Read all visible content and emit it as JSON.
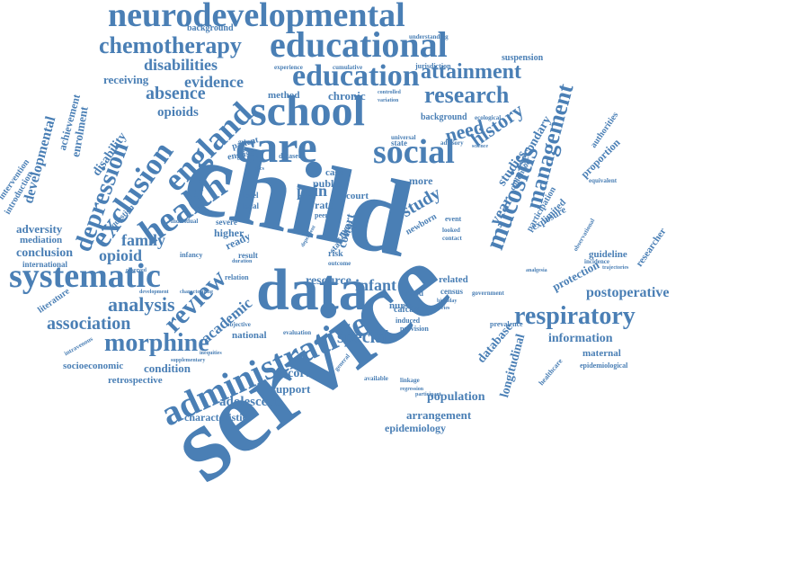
{
  "cloud": {
    "color": "#4a7fb5",
    "words": [
      "neurodevelopmental",
      "educational",
      "chemotherapy",
      "education",
      "disabilities",
      "attainment",
      "evidence",
      "absence",
      "research",
      "receiving",
      "england",
      "school",
      "management",
      "service",
      "care",
      "social",
      "need",
      "mucositis",
      "history",
      "opioids",
      "background",
      "understanding",
      "suspension",
      "experience",
      "cumulative",
      "jurisdiction",
      "ecological",
      "secondary",
      "authorities",
      "proportion",
      "exclusion",
      "depression",
      "developmental",
      "achievement",
      "enrolment",
      "disability",
      "health",
      "study",
      "year",
      "studies",
      "family",
      "pain",
      "systematic",
      "review",
      "opioid",
      "analysis",
      "association",
      "conclusion",
      "adversity",
      "mediation",
      "international",
      "child",
      "data",
      "administrative",
      "morphine",
      "academic",
      "special",
      "infant",
      "cohort",
      "resource",
      "entry",
      "respiratory",
      "information",
      "postoperative",
      "guideline",
      "protection",
      "researcher",
      "database",
      "longitudinal",
      "maternal",
      "epidemiological",
      "healthcare",
      "population",
      "arrangement",
      "epidemiology",
      "adolescent",
      "characteristic",
      "support",
      "record",
      "condition",
      "retrospective",
      "socioeconomic",
      "national",
      "literature",
      "introduction",
      "intervention",
      "method",
      "chronic",
      "patient",
      "english",
      "dataset",
      "public",
      "case",
      "court",
      "rate",
      "peer",
      "level",
      "local",
      "higher",
      "ready",
      "severe",
      "infancy",
      "result",
      "relation",
      "objective",
      "evaluation",
      "related",
      "nurse",
      "more",
      "linked",
      "census",
      "government",
      "prevalence",
      "induced",
      "provision",
      "cafcass",
      "newborn",
      "event",
      "looked",
      "contact",
      "ketamine",
      "adverse",
      "limited",
      "exposure",
      "participation",
      "childhood",
      "equivalent",
      "observational",
      "incidence",
      "trajectories",
      "analgesia",
      "observed",
      "question",
      "individual",
      "duration",
      "development",
      "characterizing",
      "supplementary",
      "intravenous",
      "inequities",
      "general",
      "available",
      "birthday",
      "series",
      "linkage",
      "regression",
      "participant",
      "controlled",
      "variation",
      "universal",
      "advisory",
      "science",
      "group",
      "chcs",
      "state",
      "risk",
      "statistical",
      "meta",
      "dependent",
      "outcome"
    ]
  }
}
